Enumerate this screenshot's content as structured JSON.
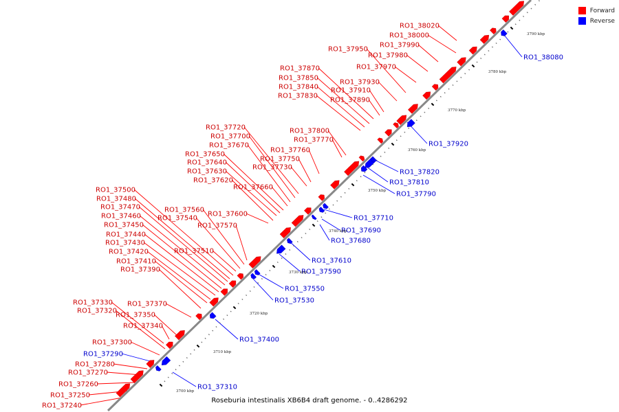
{
  "title": "Roseburia intestinalis XB6B4 draft genome. - 0..4286292",
  "legend": [
    {
      "label": "Forward",
      "color": "#ff0000"
    },
    {
      "label": "Reverse",
      "color": "#0000ff"
    }
  ],
  "colors": {
    "forward": "#ff0000",
    "reverse": "#0000ff",
    "backbone": "#888888",
    "text_forward": "#cc0000",
    "text_reverse": "#0000cc"
  },
  "ticks": [
    "3700 kbp",
    "3710 kbp",
    "3720 kbp",
    "3730 kbp",
    "3740 kbp",
    "3750 kbp",
    "3760 kbp",
    "3770 kbp",
    "3780 kbp",
    "3790 kbp"
  ],
  "genes": [
    {
      "name": "RO1_37240",
      "strand": "forward"
    },
    {
      "name": "RO1_37250",
      "strand": "forward"
    },
    {
      "name": "RO1_37260",
      "strand": "forward"
    },
    {
      "name": "RO1_37270",
      "strand": "forward"
    },
    {
      "name": "RO1_37280",
      "strand": "forward"
    },
    {
      "name": "RO1_37290",
      "strand": "reverse"
    },
    {
      "name": "RO1_37300",
      "strand": "forward"
    },
    {
      "name": "RO1_37310",
      "strand": "reverse"
    },
    {
      "name": "RO1_37320",
      "strand": "forward"
    },
    {
      "name": "RO1_37330",
      "strand": "forward"
    },
    {
      "name": "RO1_37340",
      "strand": "forward"
    },
    {
      "name": "RO1_37350",
      "strand": "forward"
    },
    {
      "name": "RO1_37370",
      "strand": "forward"
    },
    {
      "name": "RO1_37390",
      "strand": "forward"
    },
    {
      "name": "RO1_37400",
      "strand": "reverse"
    },
    {
      "name": "RO1_37410",
      "strand": "forward"
    },
    {
      "name": "RO1_37420",
      "strand": "forward"
    },
    {
      "name": "RO1_37430",
      "strand": "forward"
    },
    {
      "name": "RO1_37440",
      "strand": "forward"
    },
    {
      "name": "RO1_37450",
      "strand": "forward"
    },
    {
      "name": "RO1_37460",
      "strand": "forward"
    },
    {
      "name": "RO1_37470",
      "strand": "forward"
    },
    {
      "name": "RO1_37480",
      "strand": "forward"
    },
    {
      "name": "RO1_37500",
      "strand": "forward"
    },
    {
      "name": "RO1_37510",
      "strand": "forward"
    },
    {
      "name": "RO1_37530",
      "strand": "reverse"
    },
    {
      "name": "RO1_37540",
      "strand": "forward"
    },
    {
      "name": "RO1_37550",
      "strand": "reverse"
    },
    {
      "name": "RO1_37560",
      "strand": "forward"
    },
    {
      "name": "RO1_37570",
      "strand": "forward"
    },
    {
      "name": "RO1_37590",
      "strand": "reverse"
    },
    {
      "name": "RO1_37600",
      "strand": "forward"
    },
    {
      "name": "RO1_37610",
      "strand": "reverse"
    },
    {
      "name": "RO1_37620",
      "strand": "forward"
    },
    {
      "name": "RO1_37630",
      "strand": "forward"
    },
    {
      "name": "RO1_37640",
      "strand": "forward"
    },
    {
      "name": "RO1_37650",
      "strand": "forward"
    },
    {
      "name": "RO1_37660",
      "strand": "forward"
    },
    {
      "name": "RO1_37670",
      "strand": "forward"
    },
    {
      "name": "RO1_37680",
      "strand": "reverse"
    },
    {
      "name": "RO1_37690",
      "strand": "reverse"
    },
    {
      "name": "RO1_37700",
      "strand": "forward"
    },
    {
      "name": "RO1_37710",
      "strand": "reverse"
    },
    {
      "name": "RO1_37720",
      "strand": "forward"
    },
    {
      "name": "RO1_37730",
      "strand": "forward"
    },
    {
      "name": "RO1_37750",
      "strand": "forward"
    },
    {
      "name": "RO1_37760",
      "strand": "forward"
    },
    {
      "name": "RO1_37770",
      "strand": "forward"
    },
    {
      "name": "RO1_37790",
      "strand": "reverse"
    },
    {
      "name": "RO1_37800",
      "strand": "forward"
    },
    {
      "name": "RO1_37810",
      "strand": "reverse"
    },
    {
      "name": "RO1_37820",
      "strand": "reverse"
    },
    {
      "name": "RO1_37830",
      "strand": "forward"
    },
    {
      "name": "RO1_37840",
      "strand": "forward"
    },
    {
      "name": "RO1_37850",
      "strand": "forward"
    },
    {
      "name": "RO1_37870",
      "strand": "forward"
    },
    {
      "name": "RO1_37890",
      "strand": "forward"
    },
    {
      "name": "RO1_37910",
      "strand": "forward"
    },
    {
      "name": "RO1_37920",
      "strand": "reverse"
    },
    {
      "name": "RO1_37930",
      "strand": "forward"
    },
    {
      "name": "RO1_37950",
      "strand": "forward"
    },
    {
      "name": "RO1_37970",
      "strand": "forward"
    },
    {
      "name": "RO1_37980",
      "strand": "forward"
    },
    {
      "name": "RO1_37990",
      "strand": "forward"
    },
    {
      "name": "RO1_38000",
      "strand": "forward"
    },
    {
      "name": "RO1_38020",
      "strand": "forward"
    },
    {
      "name": "RO1_38080",
      "strand": "reverse"
    }
  ]
}
